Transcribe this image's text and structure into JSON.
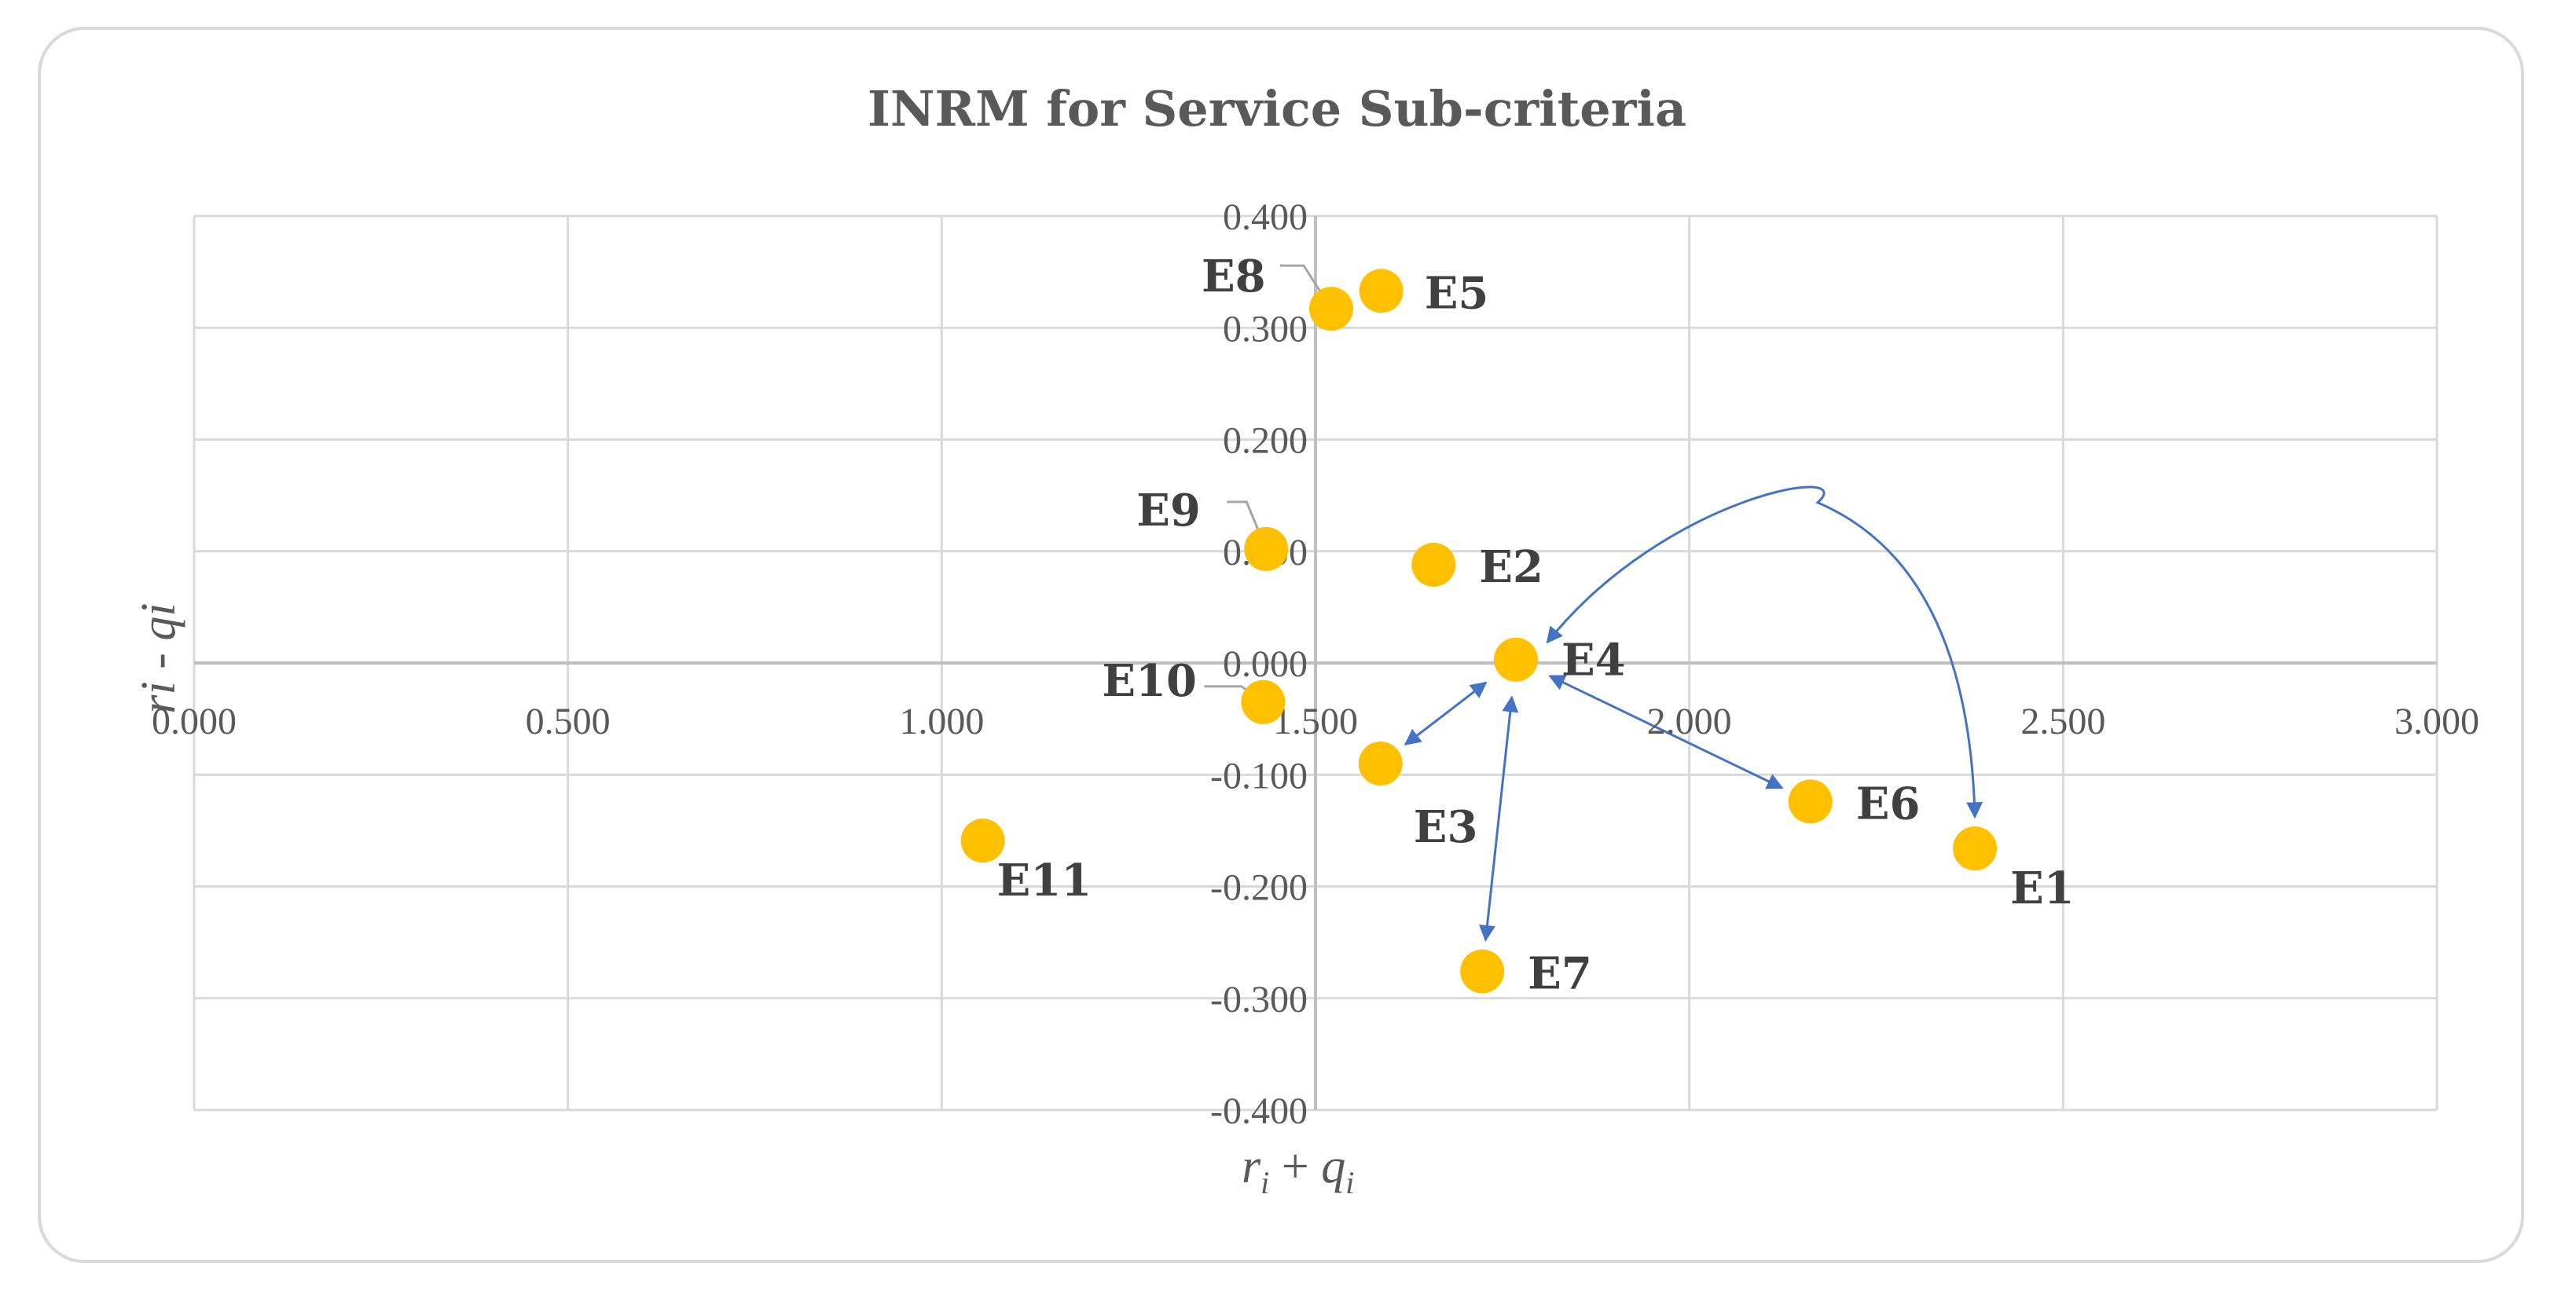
{
  "chart_data": {
    "type": "scatter",
    "title": "INRM for Service  Sub-criteria",
    "xlabel": {
      "r": "r",
      "r_sub": "i",
      "plus": " + ",
      "q": "q",
      "q_sub": "i"
    },
    "ylabel": "ri - qi",
    "xlim": [
      0,
      3
    ],
    "ylim": [
      -0.4,
      0.4
    ],
    "x_ticks": [
      "0.000",
      "0.500",
      "1.000",
      "1.500",
      "2.000",
      "2.500",
      "3.000"
    ],
    "y_ticks": [
      "-0.400",
      "-0.300",
      "-0.200",
      "-0.100",
      "0.000",
      "0.100",
      "0.200",
      "0.300",
      "0.400"
    ],
    "grid": true,
    "point_color": "#ffc000",
    "arrow_color": "#4472c4",
    "points": [
      {
        "label": "E1",
        "x": 2.382,
        "y": -0.166
      },
      {
        "label": "E2",
        "x": 1.658,
        "y": 0.088
      },
      {
        "label": "E3",
        "x": 1.587,
        "y": -0.09
      },
      {
        "label": "E4",
        "x": 1.768,
        "y": 0.003
      },
      {
        "label": "E5",
        "x": 1.588,
        "y": 0.333
      },
      {
        "label": "E6",
        "x": 2.162,
        "y": -0.124
      },
      {
        "label": "E7",
        "x": 1.723,
        "y": -0.276
      },
      {
        "label": "E8",
        "x": 1.521,
        "y": 0.317
      },
      {
        "label": "E9",
        "x": 1.434,
        "y": 0.102
      },
      {
        "label": "E10",
        "x": 1.43,
        "y": -0.035
      },
      {
        "label": "E11",
        "x": 1.055,
        "y": -0.159
      }
    ],
    "arrows": [
      {
        "from": "E4",
        "to": "E1",
        "bidirectional": true
      },
      {
        "from": "E4",
        "to": "E3",
        "bidirectional": true
      },
      {
        "from": "E4",
        "to": "E6",
        "bidirectional": true
      },
      {
        "from": "E4",
        "to": "E7",
        "bidirectional": true
      }
    ]
  }
}
